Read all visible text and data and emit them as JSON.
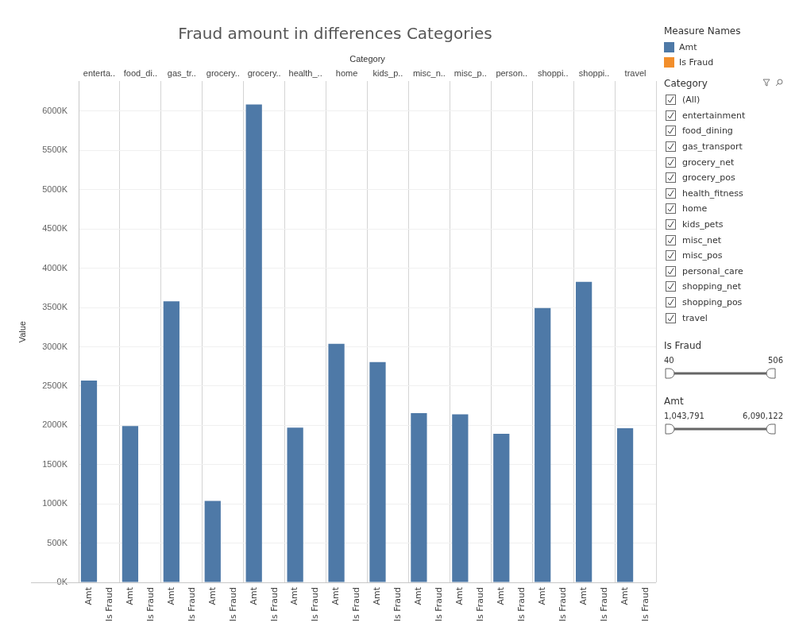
{
  "chart_data": {
    "type": "bar",
    "title": "Fraud amount in differences Categories",
    "xlabel": "Category",
    "ylabel": "Value",
    "legend_title": "Measure Names",
    "legend": "top right",
    "grid": true,
    "categories": [
      "enterta..",
      "food_di..",
      "gas_tr..",
      "grocery..",
      "grocery..",
      "health_..",
      "home",
      "kids_p..",
      "misc_n..",
      "misc_p..",
      "person..",
      "shoppi..",
      "shoppi..",
      "travel"
    ],
    "series": [
      {
        "name": "Amt",
        "color": "#4e79a7",
        "values": [
          2569,
          1991,
          3578,
          1038,
          6086,
          1970,
          3037,
          2805,
          2154,
          2141,
          1893,
          3493,
          3827,
          1962
        ]
      },
      {
        "name": "Is Fraud",
        "color": "#f28e2b",
        "values": [
          null,
          null,
          null,
          null,
          null,
          null,
          null,
          null,
          null,
          null,
          null,
          null,
          null,
          null
        ]
      }
    ],
    "ylim": [
      0,
      6380
    ],
    "yticks": [
      {
        "value": 0,
        "label": "0K"
      },
      {
        "value": 500,
        "label": "500K"
      },
      {
        "value": 1000,
        "label": "1000K"
      },
      {
        "value": 1500,
        "label": "1500K"
      },
      {
        "value": 2000,
        "label": "2000K"
      },
      {
        "value": 2500,
        "label": "2500K"
      },
      {
        "value": 3000,
        "label": "3000K"
      },
      {
        "value": 3500,
        "label": "3500K"
      },
      {
        "value": 4000,
        "label": "4000K"
      },
      {
        "value": 4500,
        "label": "4500K"
      },
      {
        "value": 5000,
        "label": "5000K"
      },
      {
        "value": 5500,
        "label": "5500K"
      },
      {
        "value": 6000,
        "label": "6000K"
      }
    ],
    "annotations": [
      "Category",
      "(All)",
      "entertainment",
      "food_dining",
      "gas_transport",
      "grocery_net",
      "grocery_pos",
      "health_fitness",
      "home",
      "kids_pets",
      "misc_net",
      "misc_pos",
      "personal_care",
      "shopping_net",
      "shopping_pos",
      "travel",
      "Is Fraud",
      "40",
      "506",
      "Amt",
      "1,043,791",
      "6,090,122"
    ]
  }
}
